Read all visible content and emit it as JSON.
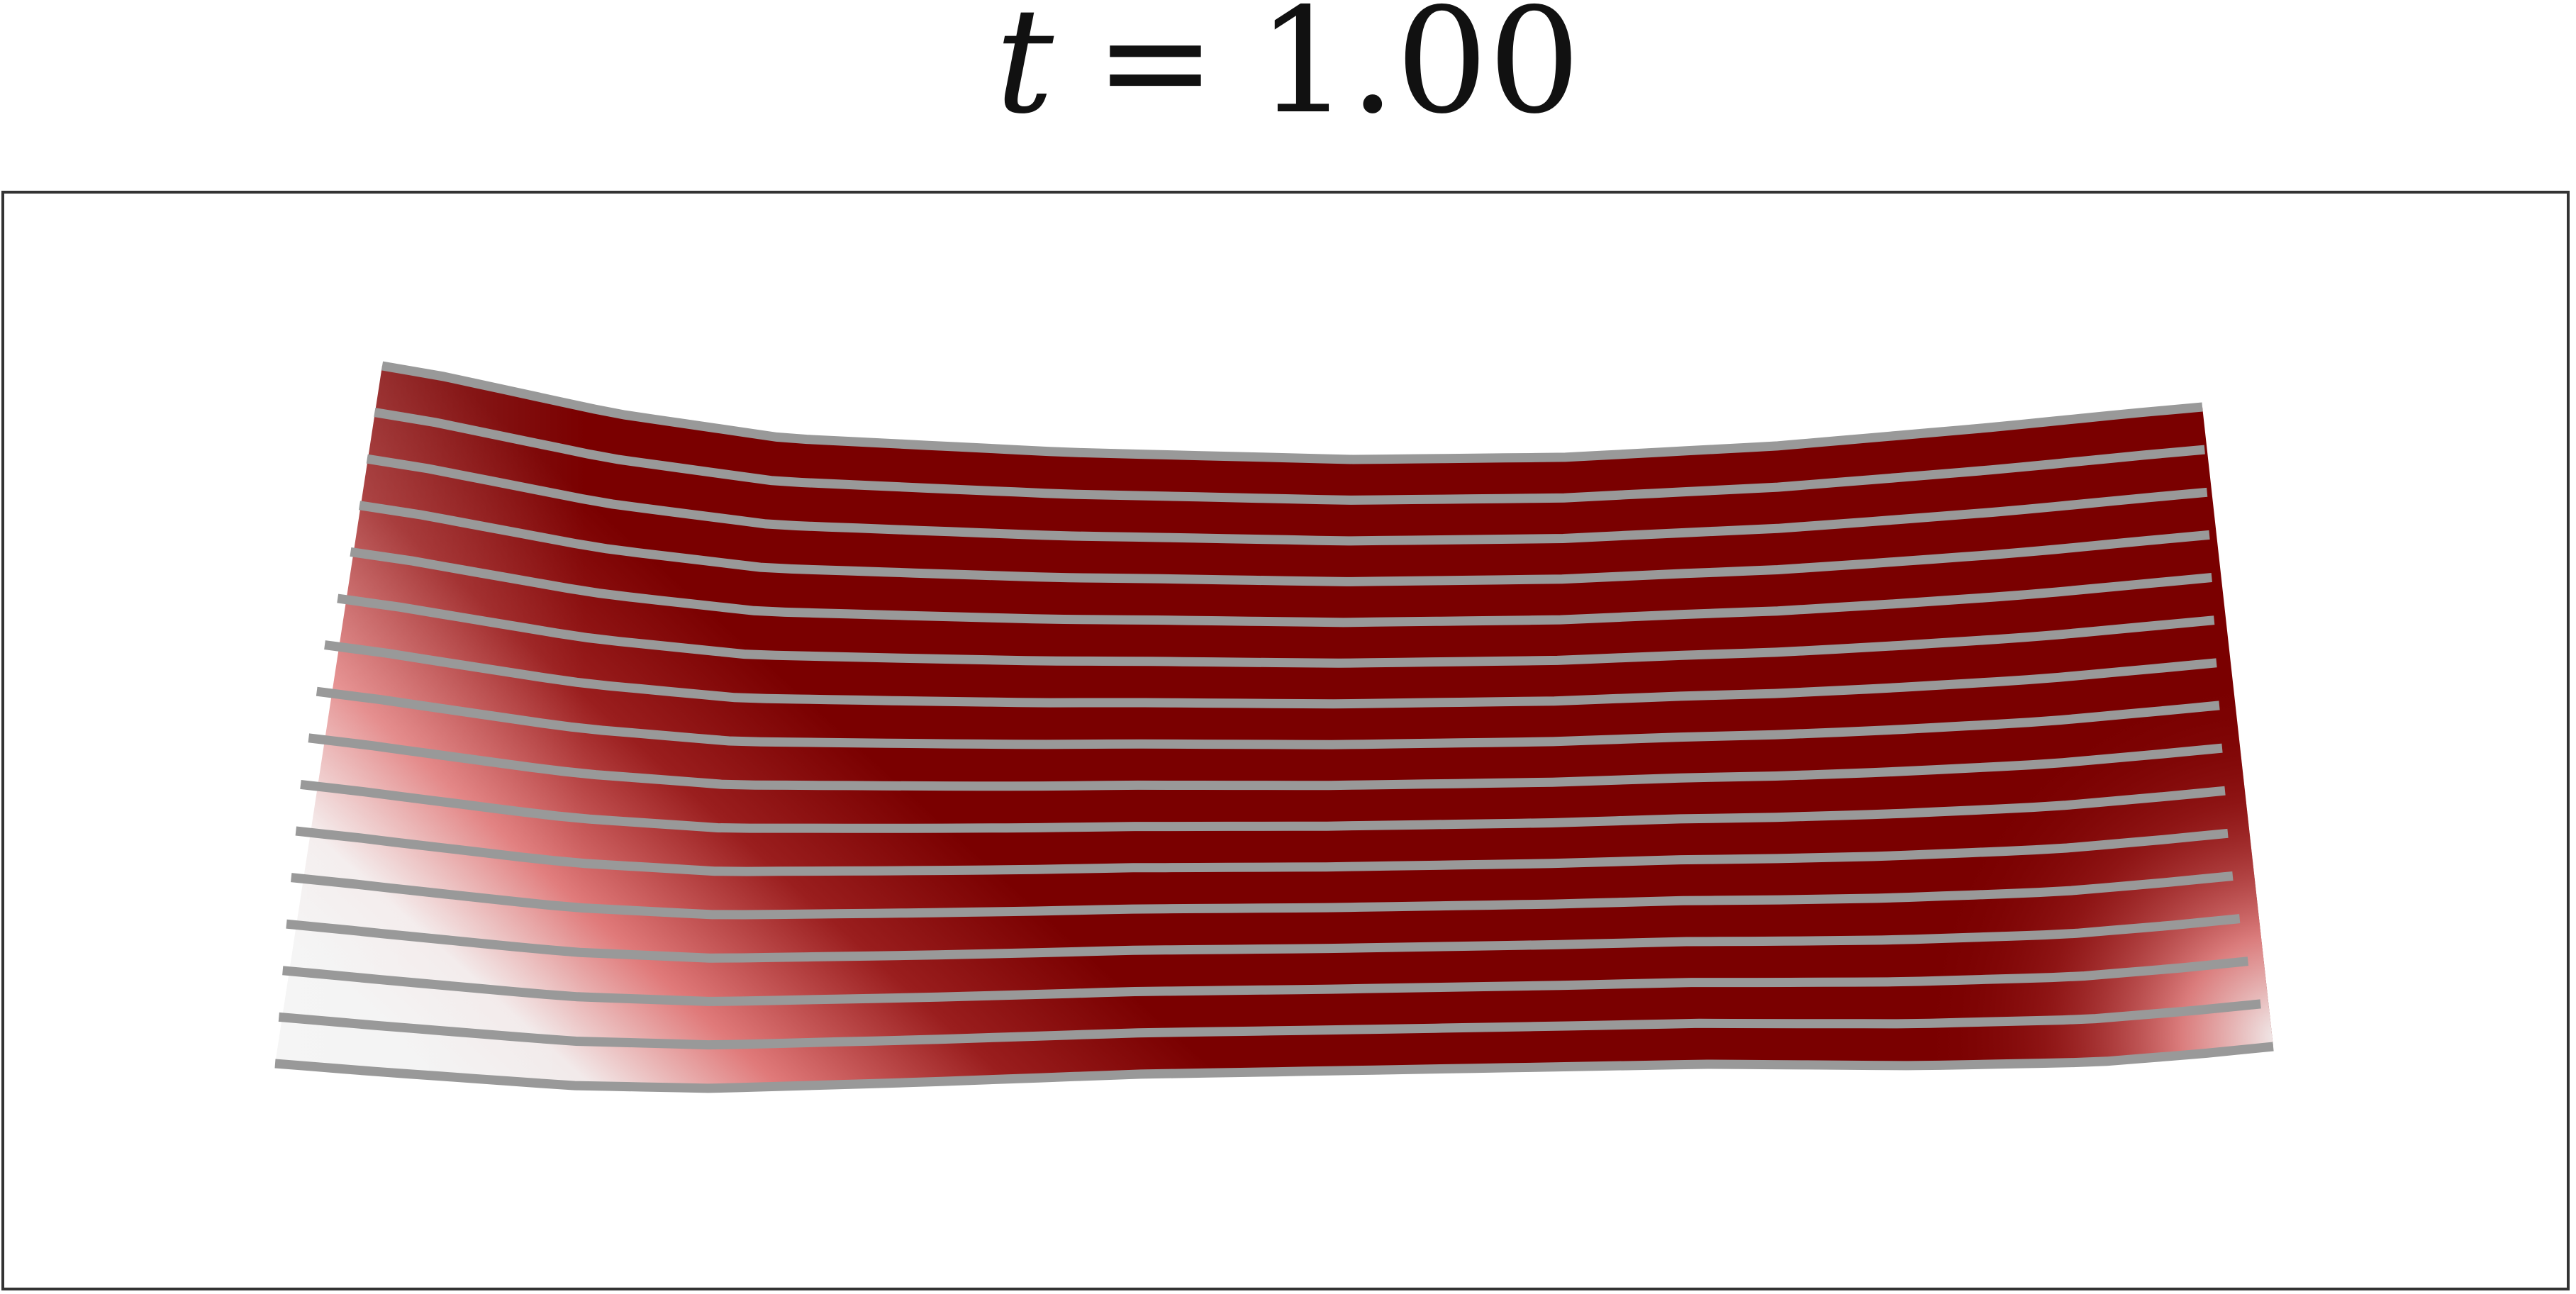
{
  "title": {
    "variable": "t",
    "equals": "=",
    "value": "1.00"
  },
  "surface": {
    "dark_color": "#7a0000",
    "mid_color": "#e07a7a",
    "light_color": "#f2f2f2",
    "line_color": "#999999",
    "streamline_count": 16
  }
}
